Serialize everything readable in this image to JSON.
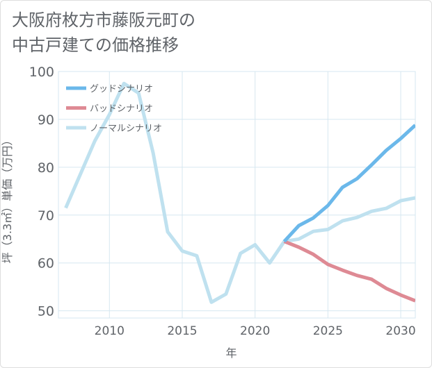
{
  "title_lines": [
    "大阪府枚方市藤阪元町の",
    "中古戸建ての価格推移"
  ],
  "colors": {
    "good": "#6bb8ea",
    "bad": "#de8a94",
    "normal": "#bfe1ef",
    "grid": "#d6e7f0",
    "text": "#5f6368"
  },
  "chart_data": {
    "type": "line",
    "xlabel": "年",
    "ylabel": "坪（3.3㎡）単価（万円）",
    "xlim": [
      2006.5,
      2031
    ],
    "ylim": [
      48.5,
      100
    ],
    "xticks": [
      2010,
      2015,
      2020,
      2025,
      2030
    ],
    "yticks": [
      50,
      60,
      70,
      80,
      90,
      100
    ],
    "grid": true,
    "legend_position": "top-left",
    "series": [
      {
        "name": "グッドシナリオ",
        "color": "#6bb8ea",
        "points": [
          [
            2022,
            64.5
          ],
          [
            2023,
            67.8
          ],
          [
            2024,
            69.4
          ],
          [
            2025,
            72.0
          ],
          [
            2026,
            75.8
          ],
          [
            2027,
            77.6
          ],
          [
            2028,
            80.5
          ],
          [
            2029,
            83.5
          ],
          [
            2030,
            86.0
          ],
          [
            2031,
            88.8
          ]
        ]
      },
      {
        "name": "バッドシナリオ",
        "color": "#de8a94",
        "points": [
          [
            2022,
            64.5
          ],
          [
            2023,
            63.3
          ],
          [
            2024,
            61.8
          ],
          [
            2025,
            59.7
          ],
          [
            2026,
            58.5
          ],
          [
            2027,
            57.4
          ],
          [
            2028,
            56.6
          ],
          [
            2029,
            54.7
          ],
          [
            2030,
            53.3
          ],
          [
            2031,
            52.1
          ]
        ]
      },
      {
        "name": "ノーマルシナリオ",
        "color": "#bfe1ef",
        "points": [
          [
            2007,
            71.5
          ],
          [
            2008,
            78.5
          ],
          [
            2009,
            85.5
          ],
          [
            2010,
            91.0
          ],
          [
            2011,
            97.5
          ],
          [
            2012,
            95.5
          ],
          [
            2013,
            83.0
          ],
          [
            2014,
            66.5
          ],
          [
            2015,
            62.5
          ],
          [
            2016,
            61.5
          ],
          [
            2017,
            51.8
          ],
          [
            2018,
            53.5
          ],
          [
            2019,
            62.0
          ],
          [
            2020,
            63.8
          ],
          [
            2021,
            60.0
          ],
          [
            2022,
            64.5
          ],
          [
            2023,
            65.0
          ],
          [
            2024,
            66.6
          ],
          [
            2025,
            67.0
          ],
          [
            2026,
            68.8
          ],
          [
            2027,
            69.5
          ],
          [
            2028,
            70.8
          ],
          [
            2029,
            71.4
          ],
          [
            2030,
            73.0
          ],
          [
            2031,
            73.6
          ]
        ]
      }
    ]
  }
}
